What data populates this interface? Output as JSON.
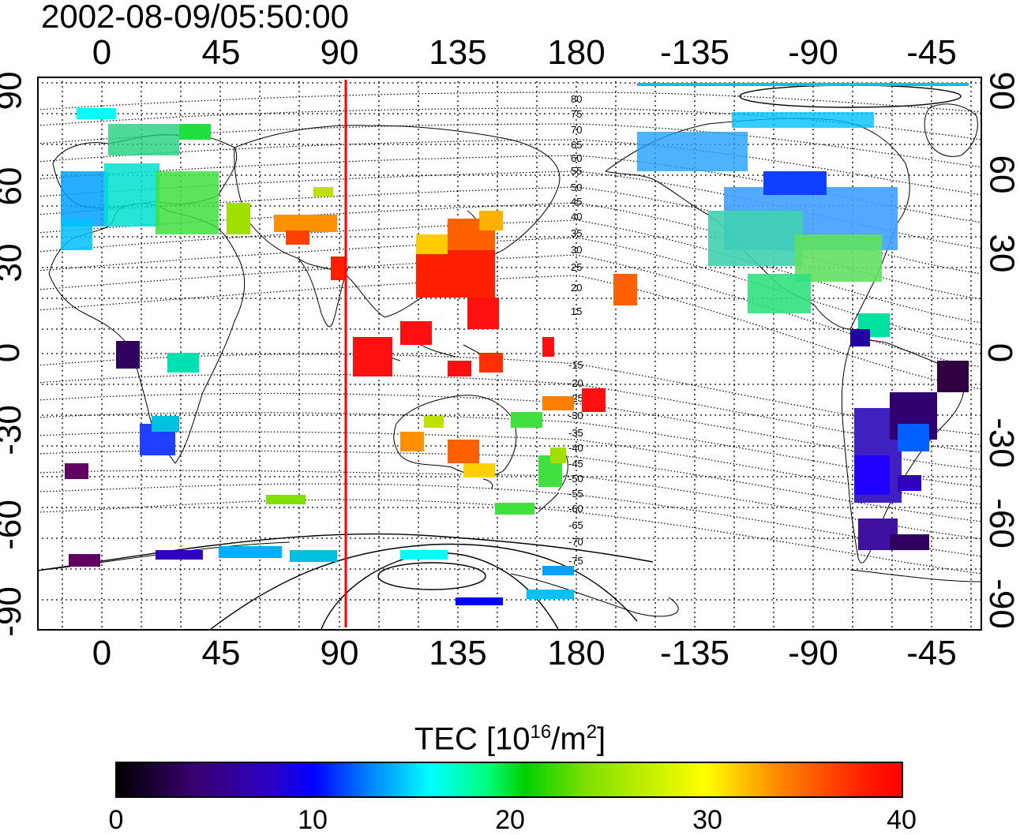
{
  "timestamp": "2002-08-09/05:50:00",
  "map": {
    "top_lon_labels": [
      "0",
      "45",
      "90",
      "135",
      "180",
      "-135",
      "-90",
      "-45"
    ],
    "bottom_lon_labels": [
      "0",
      "45",
      "90",
      "135",
      "180",
      "-135",
      "-90",
      "-45"
    ],
    "lat_labels": [
      "90",
      "60",
      "30",
      "0",
      "-30",
      "-60",
      "-90"
    ],
    "contour_labels": [
      "80",
      "75",
      "70",
      "65",
      "60",
      "55",
      "50",
      "45",
      "40",
      "35",
      "30",
      "25",
      "20",
      "15",
      "-15",
      "-20",
      "-25",
      "-30",
      "-35",
      "-40",
      "-45",
      "-50",
      "-55",
      "-60",
      "-65",
      "-70",
      "-75"
    ],
    "marker_longitude": 92,
    "marker_color": "#ff0000"
  },
  "colorbar": {
    "title": "TEC  [10",
    "title_sup1": "16",
    "title_mid": "/m",
    "title_sup2": "2",
    "title_end": "]",
    "tick_labels": [
      "0",
      "10",
      "20",
      "30",
      "40"
    ],
    "range": [
      0,
      40
    ]
  }
}
